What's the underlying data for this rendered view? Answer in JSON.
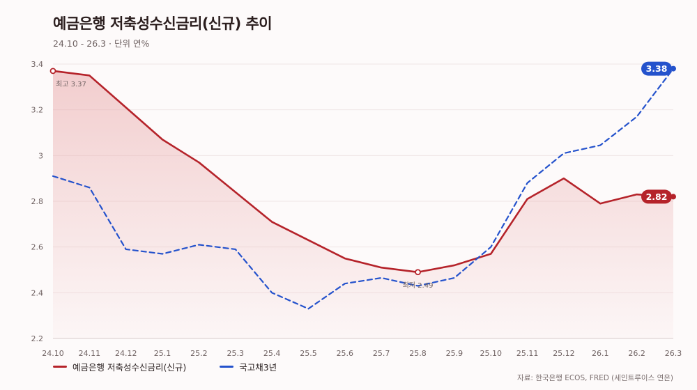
{
  "header": {
    "title": "예금은행 저축성수신금리(신규) 추이",
    "subtitle": "24.10 - 26.3 · 단위 연%"
  },
  "source": "자료: 한국은행 ECOS, FRED (세인트루이스 연은)",
  "colors": {
    "deposit": "#b5232a",
    "bond": "#2452cc",
    "fill": "#e9a9aa",
    "grid": "#efe6e6"
  },
  "chart_data": {
    "type": "line",
    "categories": [
      "24.10",
      "24.11",
      "24.12",
      "25.1",
      "25.2",
      "25.3",
      "25.4",
      "25.5",
      "25.6",
      "25.7",
      "25.8",
      "25.9",
      "25.10",
      "25.11",
      "25.12",
      "26.1",
      "26.2",
      "26.3"
    ],
    "ylim": [
      2.2,
      3.4
    ],
    "yticks": [
      {
        "value": 2.2,
        "label": "2.2"
      },
      {
        "value": 2.4,
        "label": "2.4"
      },
      {
        "value": 2.6,
        "label": "2.6"
      },
      {
        "value": 2.8,
        "label": "2.8"
      },
      {
        "value": 3.0,
        "label": "3"
      },
      {
        "value": 3.2,
        "label": "3.2"
      },
      {
        "value": 3.4,
        "label": "3.4"
      }
    ],
    "grid": true,
    "legend_position": "bottom-left",
    "series": [
      {
        "key": "deposit",
        "name": "예금은행 저축성수신금리(신규)",
        "style": "solid",
        "area": true,
        "values": [
          3.37,
          3.35,
          3.21,
          3.07,
          2.97,
          2.84,
          2.71,
          2.63,
          2.55,
          2.51,
          2.49,
          2.52,
          2.57,
          2.81,
          2.9,
          2.79,
          2.83,
          2.82
        ],
        "end_label": "2.82"
      },
      {
        "key": "bond",
        "name": "국고채3년",
        "style": "dashed",
        "area": false,
        "values": [
          2.91,
          2.86,
          2.59,
          2.57,
          2.61,
          2.59,
          2.4,
          2.33,
          2.44,
          2.465,
          2.43,
          2.465,
          2.6,
          2.88,
          3.01,
          3.045,
          3.17,
          3.38
        ],
        "end_label": "3.38"
      }
    ],
    "annotations": [
      {
        "series": "deposit",
        "index": 0,
        "text": "최고 3.37"
      },
      {
        "series": "deposit",
        "index": 10,
        "text": "최저 2.49"
      }
    ]
  }
}
